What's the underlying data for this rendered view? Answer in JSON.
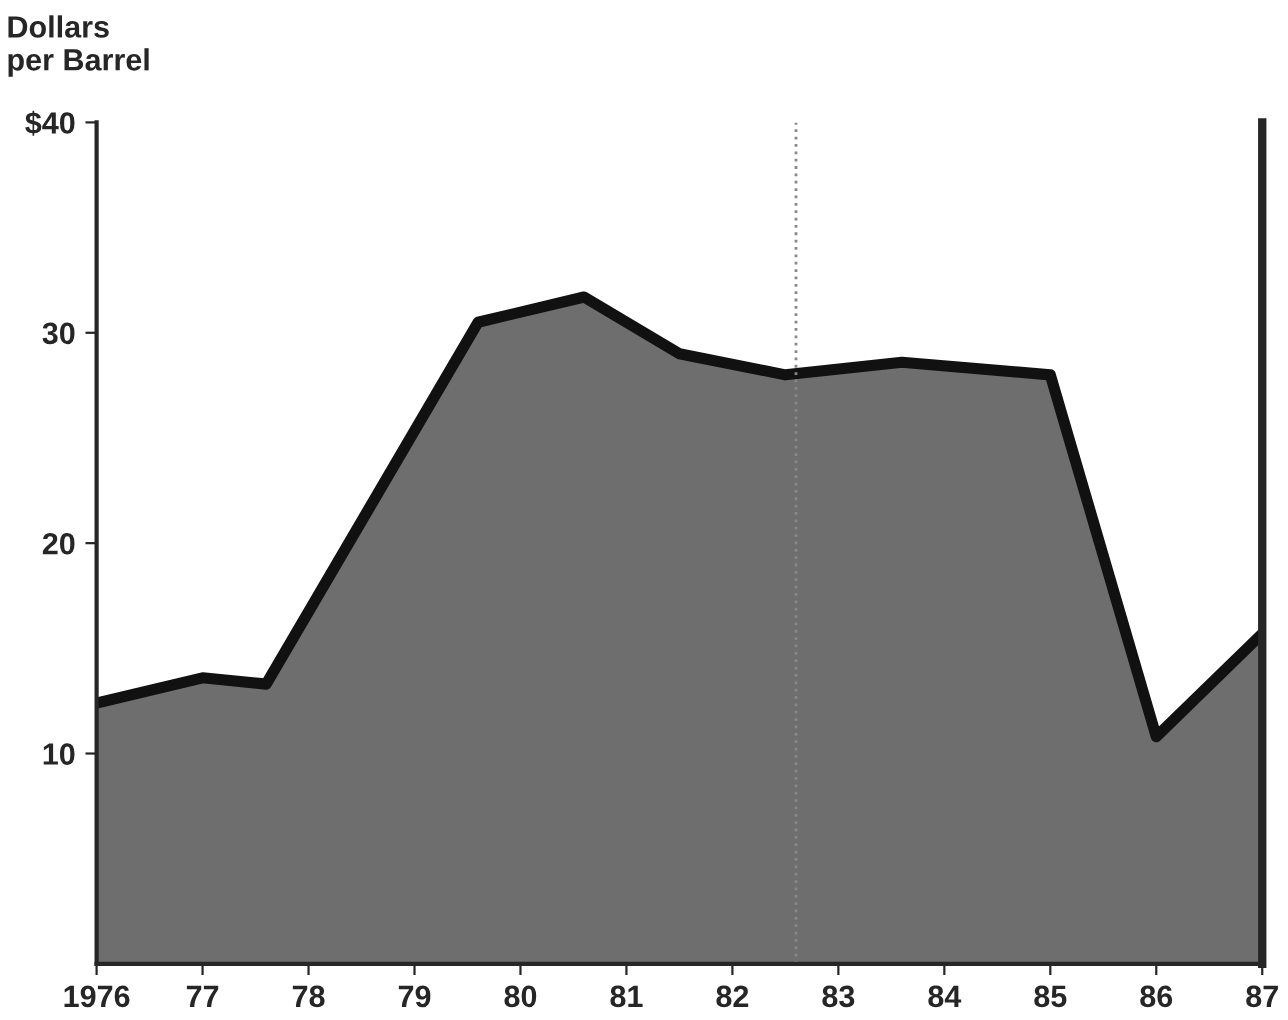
{
  "chart_data": {
    "type": "area",
    "ylabel": "Dollars\nper Barrel",
    "x": [
      1976,
      1977,
      1977.6,
      1979.6,
      1980.6,
      1981.5,
      1982.5,
      1983.6,
      1985,
      1986,
      1987
    ],
    "series": [
      {
        "color": "#555555",
        "values": [
          12.4,
          13.6,
          13.3,
          30.5,
          31.7,
          29.0,
          28.0,
          28.6,
          28.0,
          10.8,
          15.7
        ]
      }
    ],
    "xlim": [
      1976,
      1987
    ],
    "ylim": [
      0,
      40
    ],
    "xticks": [
      {
        "value": 1976,
        "label": "1976"
      },
      {
        "value": 1977,
        "label": "77"
      },
      {
        "value": 1978,
        "label": "78"
      },
      {
        "value": 1979,
        "label": "79"
      },
      {
        "value": 1980,
        "label": "80"
      },
      {
        "value": 1981,
        "label": "81"
      },
      {
        "value": 1982,
        "label": "82"
      },
      {
        "value": 1983,
        "label": "83"
      },
      {
        "value": 1984,
        "label": "84"
      },
      {
        "value": 1985,
        "label": "85"
      },
      {
        "value": 1986,
        "label": "86"
      },
      {
        "value": 1987,
        "label": "87"
      }
    ],
    "yticks": [
      {
        "value": 10,
        "label": "10"
      },
      {
        "value": 20,
        "label": "20"
      },
      {
        "value": 30,
        "label": "30"
      },
      {
        "value": 40,
        "label": "$40"
      }
    ],
    "ref_lines": [
      {
        "axis": "x",
        "value": 1982.6,
        "color": "#888888",
        "line_style": "dotted"
      }
    ],
    "grid": false,
    "legend": false
  }
}
